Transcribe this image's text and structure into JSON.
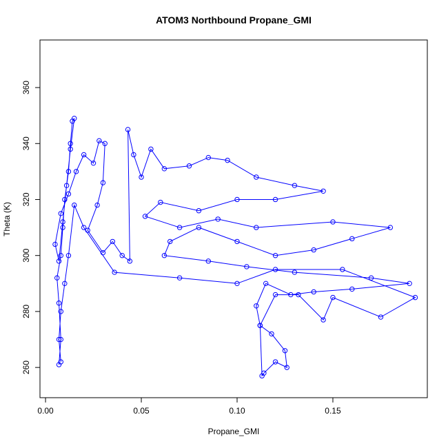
{
  "chart_data": {
    "type": "line",
    "title": "ATOM3 Northbound Propane_GMI",
    "x_label": "Propane_GMI",
    "y_label": "Theta (K)",
    "xlim": [
      -0.0029,
      0.1993
    ],
    "ylim": [
      249.2,
      377.0
    ],
    "xticks": [
      {
        "value": 0,
        "label": "0.00"
      },
      {
        "value": 0.05,
        "label": "0.05"
      },
      {
        "value": 0.1,
        "label": "0.10"
      },
      {
        "value": 0.15,
        "label": "0.15"
      }
    ],
    "yticks": [
      260,
      280,
      300,
      320,
      340,
      360
    ],
    "x": [
      0.007,
      0.008,
      0.007,
      0.006,
      0.008,
      0.009,
      0.01,
      0.012,
      0.013,
      0.014,
      0.015,
      0.013,
      0.011,
      0.009,
      0.007,
      0.005,
      0.008,
      0.012,
      0.016,
      0.02,
      0.025,
      0.028,
      0.031,
      0.03,
      0.027,
      0.022,
      0.03,
      0.035,
      0.04,
      0.044,
      0.043,
      0.046,
      0.05,
      0.055,
      0.062,
      0.075,
      0.085,
      0.095,
      0.11,
      0.13,
      0.145,
      0.12,
      0.1,
      0.08,
      0.06,
      0.052,
      0.07,
      0.09,
      0.11,
      0.15,
      0.18,
      0.16,
      0.14,
      0.12,
      0.1,
      0.08,
      0.065,
      0.062,
      0.085,
      0.105,
      0.13,
      0.17,
      0.19,
      0.16,
      0.14,
      0.128,
      0.115,
      0.11,
      0.112,
      0.118,
      0.125,
      0.126,
      0.12,
      0.114,
      0.113,
      0.112,
      0.12,
      0.132,
      0.145,
      0.15,
      0.175,
      0.193,
      0.155,
      0.12,
      0.1,
      0.07,
      0.036,
      0.02,
      0.015,
      0.012,
      0.01,
      0.008,
      0.007,
      0.008
    ],
    "series": [
      {
        "name": "Theta",
        "color": "#0000ff",
        "values": [
          261,
          270,
          283,
          292,
          300,
          310,
          320,
          330,
          340,
          348,
          349,
          338,
          325,
          312,
          298,
          304,
          315,
          322,
          330,
          336,
          333,
          341,
          340,
          326,
          318,
          309,
          301,
          305,
          300,
          298,
          345,
          336,
          328,
          338,
          331,
          332,
          335,
          334,
          328,
          325,
          323,
          320,
          320,
          316,
          319,
          314,
          310,
          313,
          310,
          312,
          310,
          306,
          302,
          300,
          305,
          310,
          305,
          300,
          298,
          296,
          294,
          292,
          290,
          288,
          287,
          286,
          290,
          282,
          275,
          272,
          266,
          260,
          262,
          258,
          257,
          275,
          286,
          286,
          277,
          285,
          278,
          285,
          295,
          295,
          290,
          292,
          294,
          310,
          318,
          300,
          290,
          280,
          270,
          262
        ]
      }
    ]
  }
}
